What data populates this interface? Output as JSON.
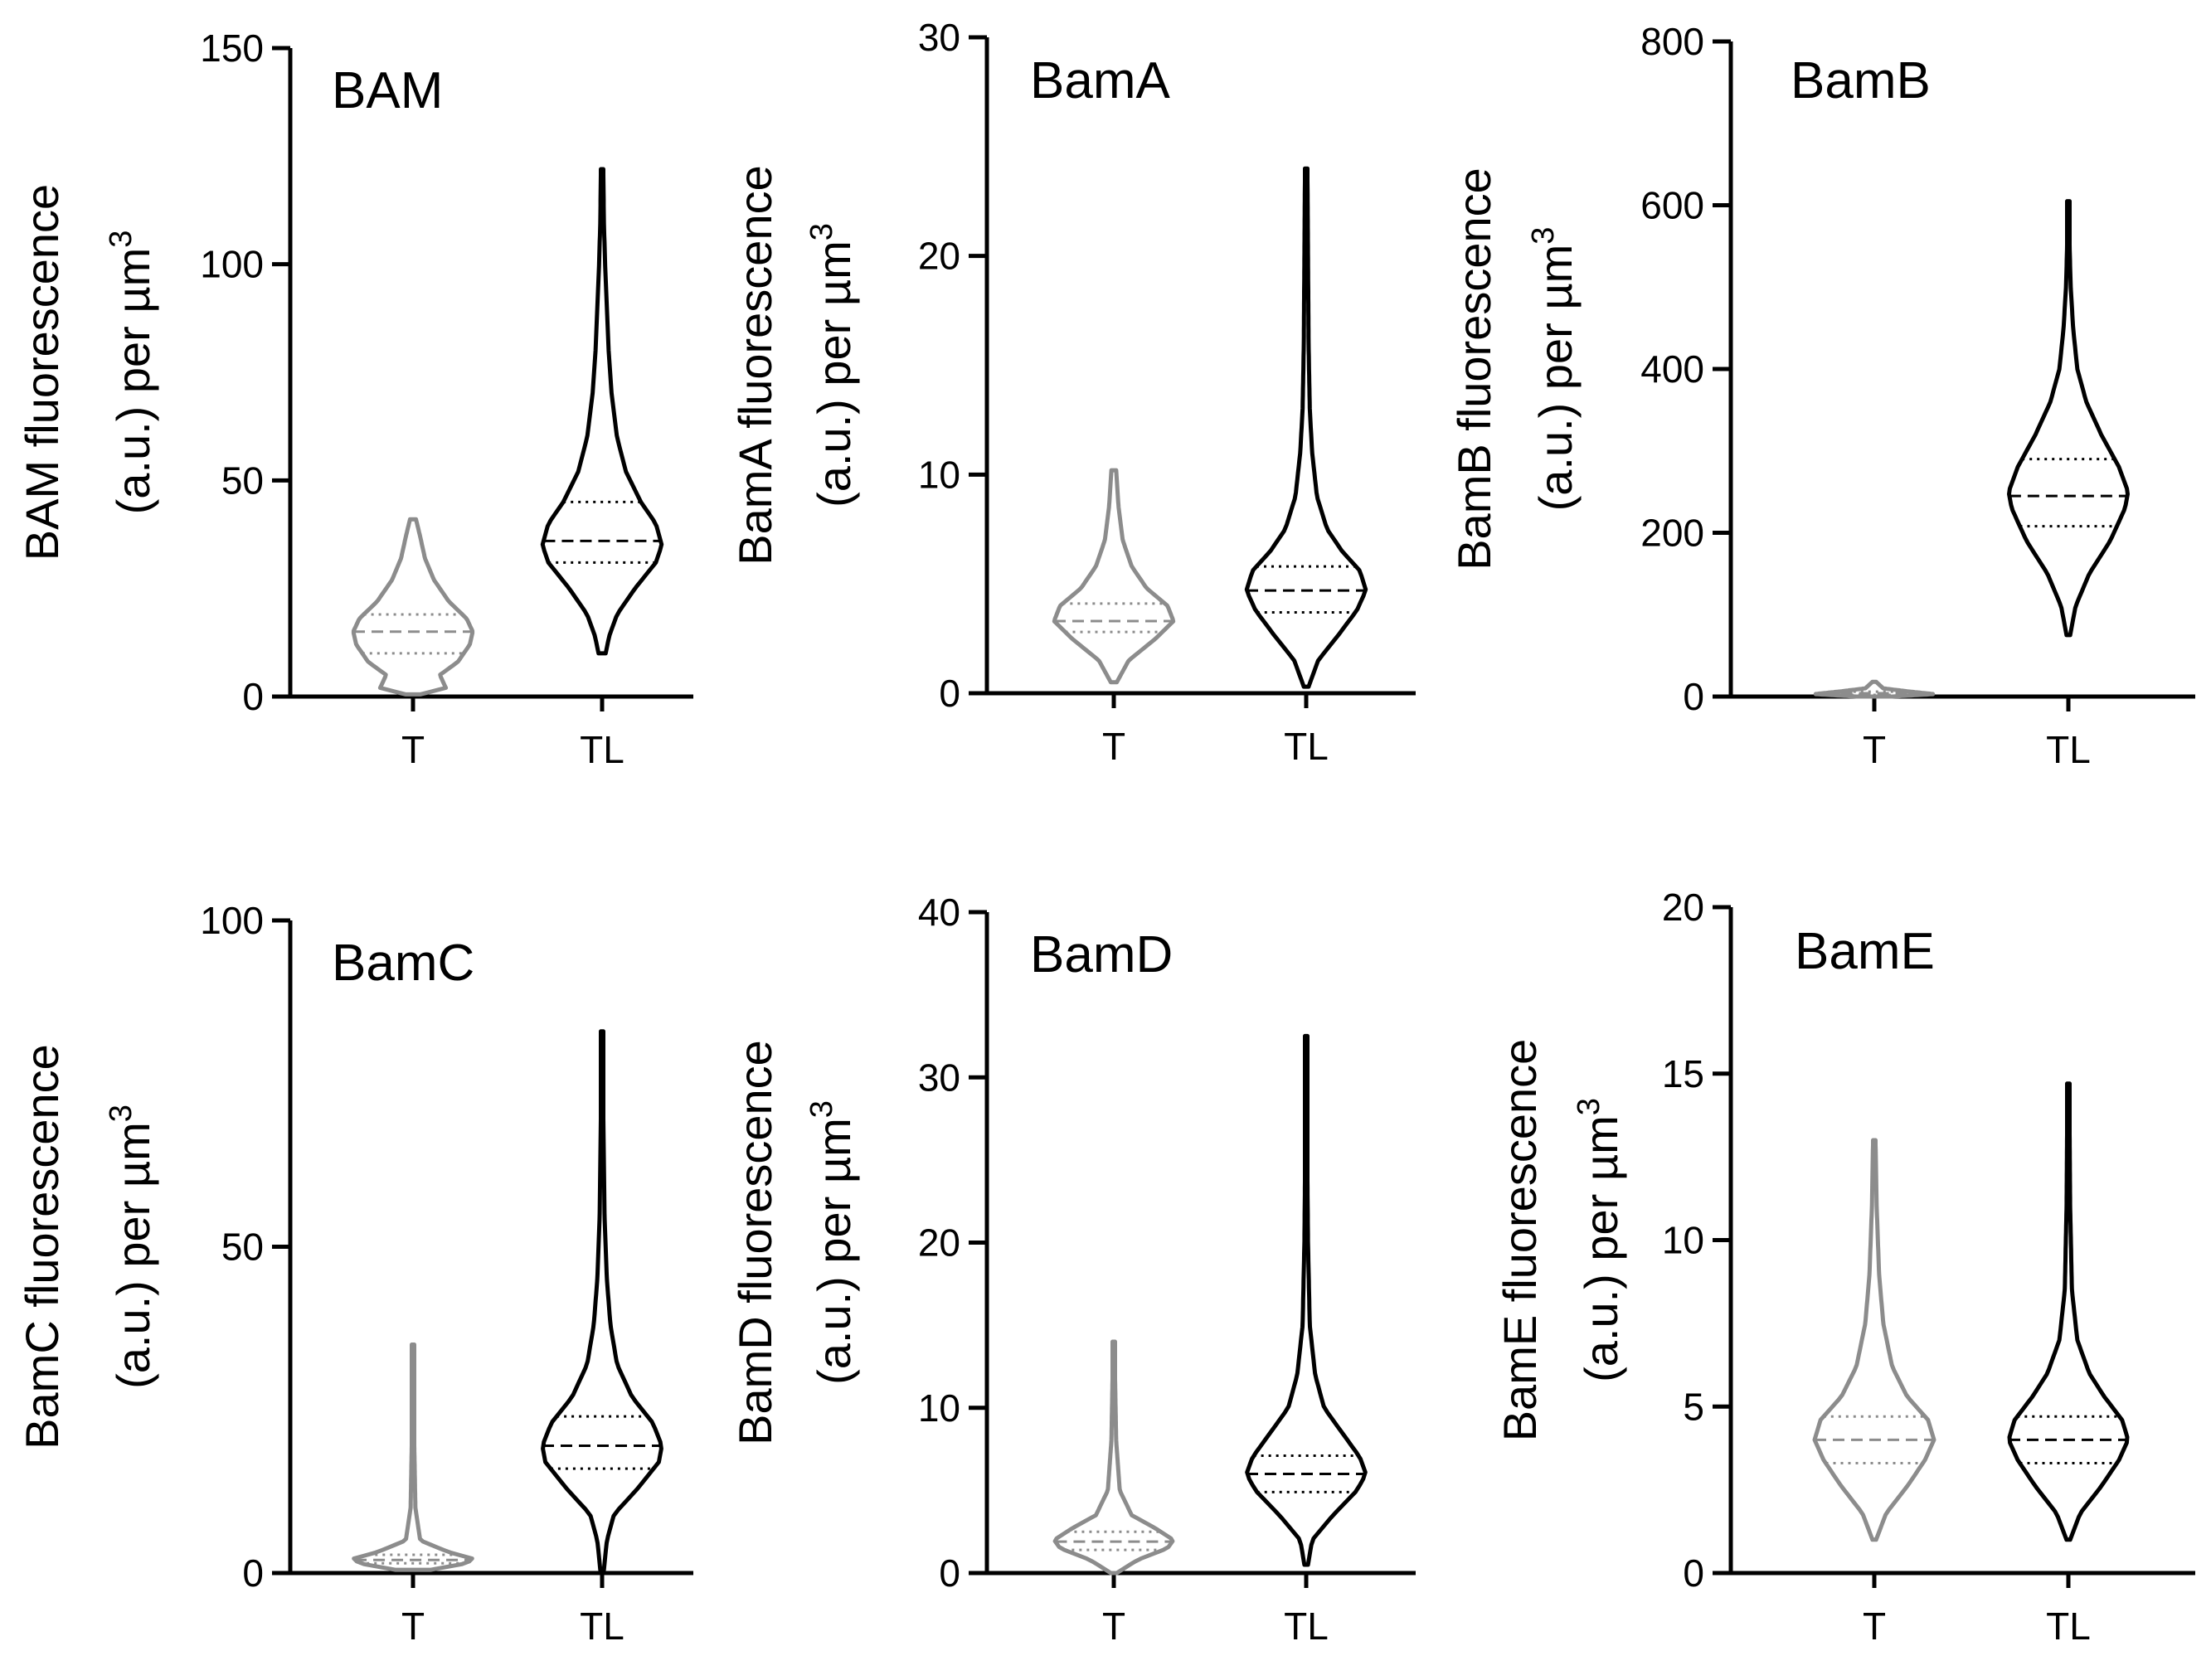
{
  "figure": {
    "category_labels": [
      "T",
      "TL"
    ],
    "unit_superscript": "3"
  },
  "chart_data": [
    {
      "type": "violin",
      "title": "BAM",
      "ylabel_line1": "BAM fluorescence",
      "ylabel_line2": "(a.u.) per µm",
      "xlabel": "",
      "ylim": [
        0,
        150
      ],
      "yticks": [
        0,
        50,
        100,
        150
      ],
      "categories": [
        "T",
        "TL"
      ],
      "series": [
        {
          "name": "T",
          "color": "#8c8c8c",
          "min": 0.5,
          "max": 41,
          "q1": 10,
          "median": 15,
          "q3": 19,
          "profile": [
            [
              0.5,
              0.12
            ],
            [
              2,
              0.55
            ],
            [
              5,
              0.45
            ],
            [
              8,
              0.75
            ],
            [
              12,
              0.95
            ],
            [
              15,
              1
            ],
            [
              18,
              0.9
            ],
            [
              22,
              0.6
            ],
            [
              27,
              0.35
            ],
            [
              32,
              0.2
            ],
            [
              37,
              0.12
            ],
            [
              41,
              0.05
            ]
          ]
        },
        {
          "name": "TL",
          "color": "#000000",
          "min": 10,
          "max": 122,
          "q1": 31,
          "median": 36,
          "q3": 45,
          "profile": [
            [
              10,
              0.06
            ],
            [
              14,
              0.12
            ],
            [
              19,
              0.25
            ],
            [
              25,
              0.55
            ],
            [
              31,
              0.9
            ],
            [
              35,
              1
            ],
            [
              40,
              0.9
            ],
            [
              45,
              0.65
            ],
            [
              52,
              0.4
            ],
            [
              60,
              0.25
            ],
            [
              70,
              0.16
            ],
            [
              80,
              0.11
            ],
            [
              90,
              0.08
            ],
            [
              100,
              0.05
            ],
            [
              110,
              0.03
            ],
            [
              122,
              0.02
            ]
          ]
        }
      ]
    },
    {
      "type": "violin",
      "title": "BamA",
      "ylabel_line1": "BamA fluorescence",
      "ylabel_line2": "(a.u.) per µm",
      "xlabel": "",
      "ylim": [
        0,
        30
      ],
      "yticks": [
        0,
        10,
        20,
        30
      ],
      "categories": [
        "T",
        "TL"
      ],
      "series": [
        {
          "name": "T",
          "color": "#8c8c8c",
          "min": 0.5,
          "max": 10.2,
          "q1": 2.8,
          "median": 3.3,
          "q3": 4.1,
          "profile": [
            [
              0.5,
              0.05
            ],
            [
              1.5,
              0.25
            ],
            [
              2.5,
              0.7
            ],
            [
              3.3,
              1
            ],
            [
              4,
              0.9
            ],
            [
              4.8,
              0.55
            ],
            [
              5.8,
              0.3
            ],
            [
              7,
              0.15
            ],
            [
              8.5,
              0.08
            ],
            [
              10.2,
              0.04
            ]
          ]
        },
        {
          "name": "TL",
          "color": "#000000",
          "min": 0.3,
          "max": 24,
          "q1": 3.7,
          "median": 4.7,
          "q3": 5.8,
          "profile": [
            [
              0.3,
              0.04
            ],
            [
              1.5,
              0.2
            ],
            [
              2.7,
              0.55
            ],
            [
              3.8,
              0.85
            ],
            [
              4.7,
              1
            ],
            [
              5.6,
              0.9
            ],
            [
              6.5,
              0.6
            ],
            [
              7.5,
              0.35
            ],
            [
              9,
              0.18
            ],
            [
              11,
              0.1
            ],
            [
              13,
              0.06
            ],
            [
              16,
              0.04
            ],
            [
              20,
              0.03
            ],
            [
              24,
              0.02
            ]
          ]
        }
      ]
    },
    {
      "type": "violin",
      "title": "BamB",
      "ylabel_line1": "BamB fluorescence",
      "ylabel_line2": "(a.u.) per µm",
      "xlabel": "",
      "ylim": [
        0,
        800
      ],
      "yticks": [
        0,
        200,
        400,
        600,
        800
      ],
      "categories": [
        "T",
        "TL"
      ],
      "series": [
        {
          "name": "T",
          "color": "#8c8c8c",
          "min": 0,
          "max": 18,
          "q1": 2,
          "median": 4,
          "q3": 6,
          "profile": [
            [
              0,
              0.3
            ],
            [
              3,
              1
            ],
            [
              6,
              0.6
            ],
            [
              10,
              0.15
            ],
            [
              18,
              0.03
            ]
          ]
        },
        {
          "name": "TL",
          "color": "#000000",
          "min": 75,
          "max": 605,
          "q1": 208,
          "median": 245,
          "q3": 290,
          "profile": [
            [
              75,
              0.03
            ],
            [
              110,
              0.12
            ],
            [
              150,
              0.35
            ],
            [
              190,
              0.7
            ],
            [
              230,
              0.95
            ],
            [
              250,
              1
            ],
            [
              280,
              0.85
            ],
            [
              320,
              0.55
            ],
            [
              360,
              0.3
            ],
            [
              400,
              0.15
            ],
            [
              450,
              0.08
            ],
            [
              500,
              0.04
            ],
            [
              550,
              0.02
            ],
            [
              605,
              0.01
            ]
          ]
        }
      ]
    },
    {
      "type": "violin",
      "title": "BamC",
      "ylabel_line1": "BamC fluorescence",
      "ylabel_line2": "(a.u.) per µm",
      "xlabel": "",
      "ylim": [
        0,
        100
      ],
      "yticks": [
        0,
        50,
        100
      ],
      "categories": [
        "T",
        "TL"
      ],
      "series": [
        {
          "name": "T",
          "color": "#8c8c8c",
          "min": 0.5,
          "max": 35,
          "q1": 1.5,
          "median": 2,
          "q3": 2.8,
          "profile": [
            [
              0.5,
              0.3
            ],
            [
              1.5,
              0.9
            ],
            [
              2.2,
              1
            ],
            [
              3.2,
              0.6
            ],
            [
              5,
              0.12
            ],
            [
              10,
              0.04
            ],
            [
              20,
              0.02
            ],
            [
              35,
              0.01
            ]
          ]
        },
        {
          "name": "TL",
          "color": "#000000",
          "min": 0.5,
          "max": 83,
          "q1": 16,
          "median": 19.5,
          "q3": 24,
          "profile": [
            [
              0.5,
              0.03
            ],
            [
              5,
              0.08
            ],
            [
              9,
              0.2
            ],
            [
              13,
              0.6
            ],
            [
              17,
              0.95
            ],
            [
              19.5,
              1
            ],
            [
              23,
              0.85
            ],
            [
              27,
              0.5
            ],
            [
              32,
              0.25
            ],
            [
              38,
              0.14
            ],
            [
              45,
              0.08
            ],
            [
              55,
              0.04
            ],
            [
              70,
              0.02
            ],
            [
              83,
              0.01
            ]
          ]
        }
      ]
    },
    {
      "type": "violin",
      "title": "BamD",
      "ylabel_line1": "BamD fluorescence",
      "ylabel_line2": "(a.u.) per µm",
      "xlabel": "",
      "ylim": [
        0,
        40
      ],
      "yticks": [
        0,
        10,
        20,
        30,
        40
      ],
      "categories": [
        "T",
        "TL"
      ],
      "series": [
        {
          "name": "T",
          "color": "#8c8c8c",
          "min": 0,
          "max": 14,
          "q1": 1.4,
          "median": 1.9,
          "q3": 2.5,
          "profile": [
            [
              0,
              0.05
            ],
            [
              0.8,
              0.4
            ],
            [
              1.5,
              0.9
            ],
            [
              2,
              1
            ],
            [
              2.7,
              0.7
            ],
            [
              3.5,
              0.3
            ],
            [
              5,
              0.1
            ],
            [
              8,
              0.04
            ],
            [
              14,
              0.01
            ]
          ]
        },
        {
          "name": "TL",
          "color": "#000000",
          "min": 0.5,
          "max": 32.5,
          "q1": 4.9,
          "median": 6,
          "q3": 7.1,
          "profile": [
            [
              0.5,
              0.03
            ],
            [
              2,
              0.1
            ],
            [
              3.5,
              0.45
            ],
            [
              5,
              0.85
            ],
            [
              6,
              1
            ],
            [
              7,
              0.9
            ],
            [
              8.5,
              0.6
            ],
            [
              10,
              0.3
            ],
            [
              12,
              0.15
            ],
            [
              15,
              0.06
            ],
            [
              20,
              0.03
            ],
            [
              26,
              0.015
            ],
            [
              32.5,
              0.01
            ]
          ]
        }
      ]
    },
    {
      "type": "violin",
      "title": "BamE",
      "ylabel_line1": "BamE fluorescence",
      "ylabel_line2": "(a.u.) per µm",
      "xlabel": "",
      "ylim": [
        0,
        20
      ],
      "yticks": [
        0,
        5,
        10,
        15,
        20
      ],
      "categories": [
        "T",
        "TL"
      ],
      "series": [
        {
          "name": "T",
          "color": "#8c8c8c",
          "min": 1,
          "max": 13,
          "q1": 3.3,
          "median": 4,
          "q3": 4.7,
          "profile": [
            [
              1,
              0.03
            ],
            [
              1.8,
              0.2
            ],
            [
              2.6,
              0.55
            ],
            [
              3.4,
              0.85
            ],
            [
              4,
              1
            ],
            [
              4.6,
              0.9
            ],
            [
              5.3,
              0.55
            ],
            [
              6.2,
              0.3
            ],
            [
              7.5,
              0.15
            ],
            [
              9,
              0.08
            ],
            [
              11,
              0.04
            ],
            [
              13,
              0.02
            ]
          ]
        },
        {
          "name": "TL",
          "color": "#000000",
          "min": 1,
          "max": 14.7,
          "q1": 3.3,
          "median": 4,
          "q3": 4.7,
          "profile": [
            [
              1,
              0.03
            ],
            [
              1.8,
              0.2
            ],
            [
              2.6,
              0.55
            ],
            [
              3.4,
              0.85
            ],
            [
              4,
              1
            ],
            [
              4.6,
              0.9
            ],
            [
              5.3,
              0.6
            ],
            [
              6,
              0.35
            ],
            [
              7,
              0.15
            ],
            [
              8.5,
              0.06
            ],
            [
              11,
              0.03
            ],
            [
              14.7,
              0.015
            ]
          ]
        }
      ]
    }
  ]
}
